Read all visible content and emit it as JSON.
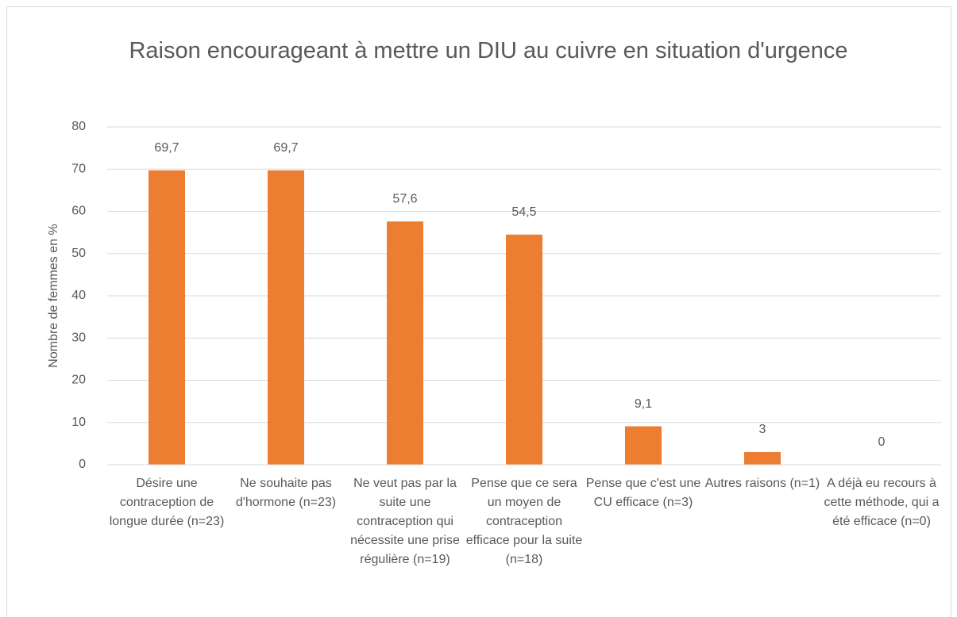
{
  "chart_data": {
    "type": "bar",
    "title": "Raison encourageant à mettre un DIU au cuivre en situation d'urgence",
    "y_label": "Nombre de femmes en %",
    "categories": [
      "Désire une contraception de longue durée (n=23)",
      "Ne souhaite pas d'hormone (n=23)",
      "Ne veut pas par la suite une contraception qui nécessite une prise régulière (n=19)",
      "Pense que ce sera un moyen de contraception efficace pour la suite (n=18)",
      "Pense que c'est une CU efficace (n=3)",
      "Autres raisons (n=1)",
      "A déjà eu recours à cette méthode, qui a été efficace (n=0)"
    ],
    "values": [
      69.7,
      69.7,
      57.6,
      54.5,
      9.1,
      3,
      0
    ],
    "value_labels": [
      "69,7",
      "69,7",
      "57,6",
      "54,5",
      "9,1",
      "3",
      "0"
    ],
    "color": "#ed7d31",
    "ylim": [
      0,
      80
    ],
    "yticks": [
      0,
      10,
      20,
      30,
      40,
      50,
      60,
      70,
      80
    ],
    "grid": true
  }
}
